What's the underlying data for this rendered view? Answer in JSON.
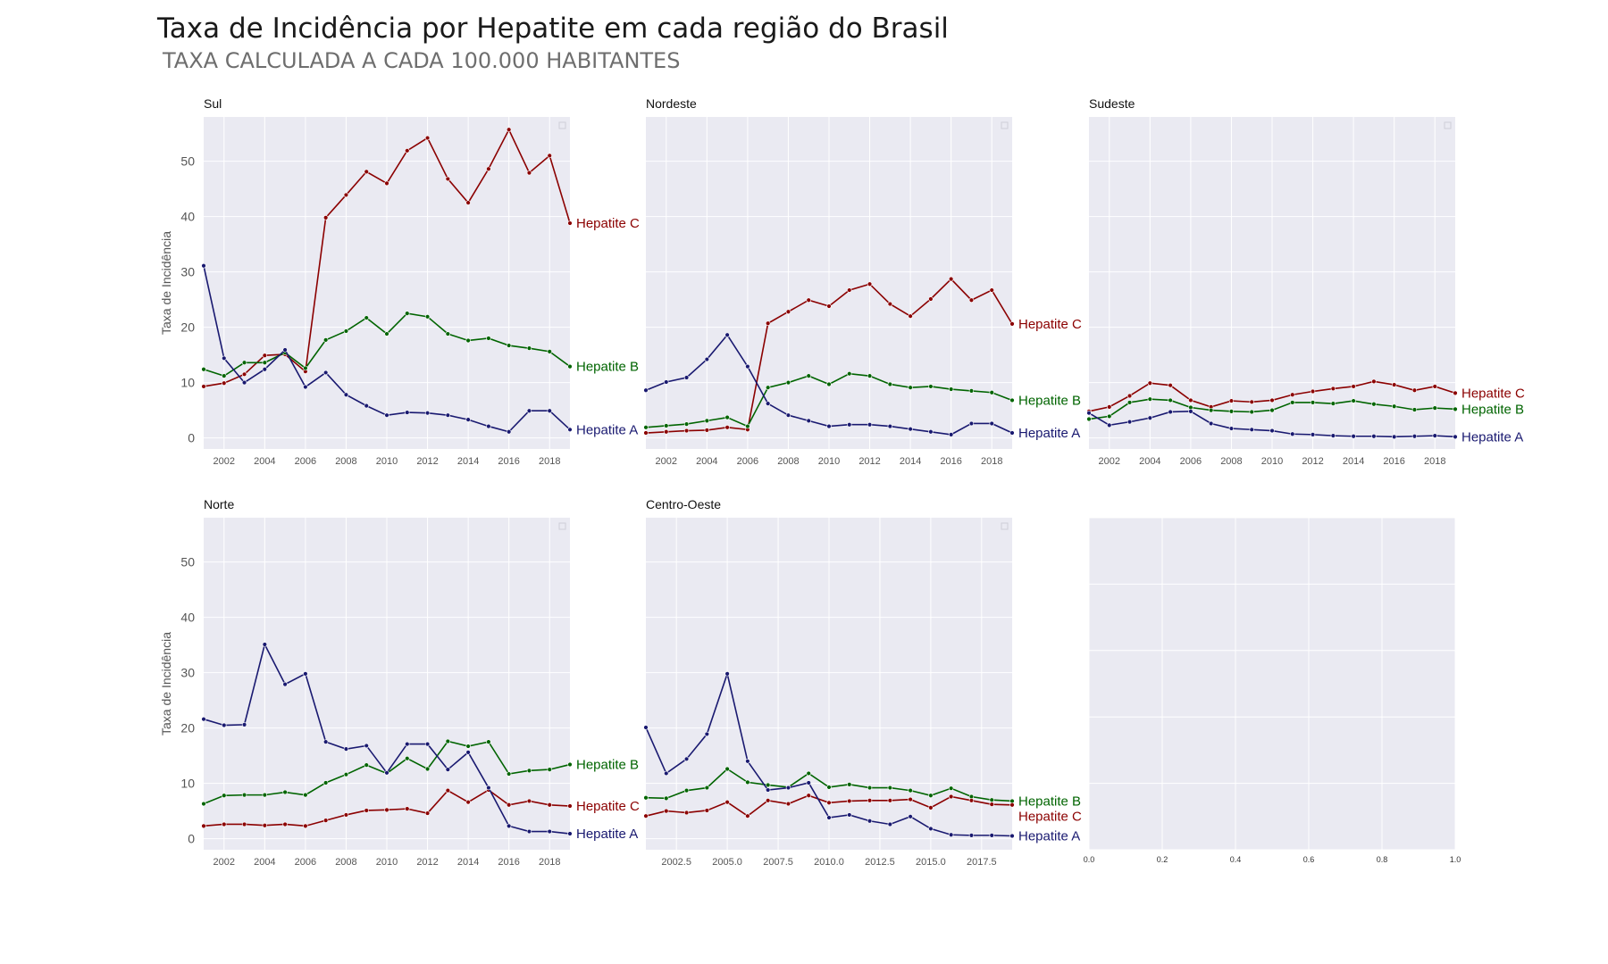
{
  "figure": {
    "title": "Taxa de Incidência por Hepatite em cada região do Brasil",
    "subtitle": "TAXA CALCULADA A CADA 100.000 HABITANTES",
    "colors": {
      "Hepatite A": "#191970",
      "Hepatite B": "#006400",
      "Hepatite C": "#8b0000",
      "background": "#eaeaf2"
    }
  },
  "chart_data": [
    {
      "type": "line",
      "title": "Sul",
      "ylabel": "Taxa de Incidência",
      "xlabel": "",
      "ylim": [
        -2,
        58
      ],
      "yticks": [
        0,
        10,
        20,
        30,
        40,
        50
      ],
      "xticks": [
        "2002",
        "2004",
        "2006",
        "2008",
        "2010",
        "2012",
        "2014",
        "2016",
        "2018"
      ],
      "grid": true,
      "x": [
        2001,
        2002,
        2003,
        2004,
        2005,
        2006,
        2007,
        2008,
        2009,
        2010,
        2011,
        2012,
        2013,
        2014,
        2015,
        2016,
        2017,
        2018,
        2019
      ],
      "series": [
        {
          "name": "Hepatite C",
          "values": [
            9.3,
            9.9,
            11.5,
            14.9,
            15.1,
            12.0,
            39.8,
            43.9,
            48.1,
            46.0,
            51.9,
            54.2,
            46.8,
            42.5,
            48.6,
            55.7,
            47.9,
            51.0,
            38.8
          ]
        },
        {
          "name": "Hepatite B",
          "values": [
            12.4,
            11.2,
            13.6,
            13.6,
            15.4,
            12.6,
            17.7,
            19.3,
            21.7,
            18.8,
            22.5,
            21.9,
            18.8,
            17.6,
            18.0,
            16.7,
            16.2,
            15.6,
            12.9
          ]
        },
        {
          "name": "Hepatite A",
          "values": [
            31.1,
            14.4,
            10.0,
            12.4,
            15.9,
            9.2,
            11.8,
            7.8,
            5.8,
            4.1,
            4.6,
            4.5,
            4.1,
            3.3,
            2.1,
            1.1,
            4.9,
            4.9,
            1.5
          ]
        }
      ]
    },
    {
      "type": "line",
      "title": "Nordeste",
      "ylim": [
        -2,
        58
      ],
      "xticks": [
        "2002",
        "2004",
        "2006",
        "2008",
        "2010",
        "2012",
        "2014",
        "2016",
        "2018"
      ],
      "grid": true,
      "x": [
        2001,
        2002,
        2003,
        2004,
        2005,
        2006,
        2007,
        2008,
        2009,
        2010,
        2011,
        2012,
        2013,
        2014,
        2015,
        2016,
        2017,
        2018,
        2019
      ],
      "series": [
        {
          "name": "Hepatite C",
          "values": [
            0.9,
            1.1,
            1.3,
            1.4,
            1.9,
            1.5,
            20.7,
            22.8,
            24.9,
            23.8,
            26.7,
            27.8,
            24.2,
            22.0,
            25.1,
            28.7,
            24.9,
            26.7,
            20.6
          ]
        },
        {
          "name": "Hepatite B",
          "values": [
            1.9,
            2.2,
            2.5,
            3.1,
            3.7,
            2.1,
            9.1,
            10.0,
            11.2,
            9.7,
            11.6,
            11.2,
            9.7,
            9.1,
            9.3,
            8.8,
            8.5,
            8.2,
            6.8
          ]
        },
        {
          "name": "Hepatite A",
          "values": [
            8.6,
            10.1,
            10.9,
            14.2,
            18.6,
            12.9,
            6.2,
            4.1,
            3.1,
            2.1,
            2.4,
            2.4,
            2.1,
            1.6,
            1.1,
            0.6,
            2.6,
            2.6,
            0.9
          ]
        }
      ]
    },
    {
      "type": "line",
      "title": "Sudeste",
      "ylim": [
        -2,
        58
      ],
      "xticks": [
        "2002",
        "2004",
        "2006",
        "2008",
        "2010",
        "2012",
        "2014",
        "2016",
        "2018"
      ],
      "grid": true,
      "x": [
        2001,
        2002,
        2003,
        2004,
        2005,
        2006,
        2007,
        2008,
        2009,
        2010,
        2011,
        2012,
        2013,
        2014,
        2015,
        2016,
        2017,
        2018,
        2019
      ],
      "series": [
        {
          "name": "Hepatite C",
          "values": [
            4.8,
            5.6,
            7.6,
            9.9,
            9.5,
            6.8,
            5.6,
            6.7,
            6.5,
            6.8,
            7.8,
            8.4,
            8.9,
            9.3,
            10.2,
            9.6,
            8.6,
            9.3,
            8.1
          ]
        },
        {
          "name": "Hepatite B",
          "values": [
            3.4,
            3.9,
            6.4,
            7.0,
            6.8,
            5.5,
            5.0,
            4.8,
            4.7,
            5.0,
            6.4,
            6.4,
            6.2,
            6.7,
            6.1,
            5.7,
            5.1,
            5.4,
            5.2
          ]
        },
        {
          "name": "Hepatite A",
          "values": [
            4.5,
            2.3,
            2.9,
            3.6,
            4.7,
            4.8,
            2.6,
            1.7,
            1.5,
            1.3,
            0.7,
            0.6,
            0.4,
            0.3,
            0.3,
            0.2,
            0.3,
            0.4,
            0.2
          ]
        }
      ]
    },
    {
      "type": "line",
      "title": "Norte",
      "ylabel": "Taxa de Incidência",
      "ylim": [
        -2,
        58
      ],
      "yticks": [
        0,
        10,
        20,
        30,
        40,
        50
      ],
      "xticks": [
        "2002",
        "2004",
        "2006",
        "2008",
        "2010",
        "2012",
        "2014",
        "2016",
        "2018"
      ],
      "grid": true,
      "x": [
        2001,
        2002,
        2003,
        2004,
        2005,
        2006,
        2007,
        2008,
        2009,
        2010,
        2011,
        2012,
        2013,
        2014,
        2015,
        2016,
        2017,
        2018,
        2019
      ],
      "series": [
        {
          "name": "Hepatite B",
          "values": [
            6.3,
            7.8,
            7.9,
            7.9,
            8.4,
            7.9,
            10.1,
            11.6,
            13.3,
            11.8,
            14.5,
            12.6,
            17.6,
            16.7,
            17.5,
            11.7,
            12.3,
            12.5,
            13.4
          ]
        },
        {
          "name": "Hepatite C",
          "values": [
            2.3,
            2.6,
            2.6,
            2.4,
            2.6,
            2.3,
            3.3,
            4.3,
            5.1,
            5.2,
            5.4,
            4.6,
            8.7,
            6.6,
            8.8,
            6.1,
            6.8,
            6.1,
            5.9
          ]
        },
        {
          "name": "Hepatite A",
          "values": [
            21.6,
            20.5,
            20.6,
            35.1,
            27.9,
            29.8,
            17.5,
            16.2,
            16.8,
            11.9,
            17.1,
            17.1,
            12.5,
            15.6,
            9.2,
            2.3,
            1.3,
            1.3,
            0.9
          ]
        }
      ]
    },
    {
      "type": "line",
      "title": "Centro-Oeste",
      "ylim": [
        -2,
        58
      ],
      "xticks": [
        "2002.5",
        "2005.0",
        "2007.5",
        "2010.0",
        "2012.5",
        "2015.0",
        "2017.5"
      ],
      "grid": true,
      "x": [
        2001,
        2002,
        2003,
        2004,
        2005,
        2006,
        2007,
        2008,
        2009,
        2010,
        2011,
        2012,
        2013,
        2014,
        2015,
        2016,
        2017,
        2018,
        2019
      ],
      "series": [
        {
          "name": "Hepatite B",
          "values": [
            7.4,
            7.3,
            8.7,
            9.2,
            12.6,
            10.2,
            9.7,
            9.3,
            11.8,
            9.3,
            9.8,
            9.2,
            9.2,
            8.7,
            7.8,
            9.1,
            7.6,
            7.0,
            6.8
          ]
        },
        {
          "name": "Hepatite C",
          "values": [
            4.1,
            5.0,
            4.7,
            5.1,
            6.6,
            4.1,
            6.9,
            6.3,
            7.8,
            6.5,
            6.8,
            6.9,
            6.9,
            7.1,
            5.6,
            7.6,
            6.9,
            6.2,
            6.1
          ]
        },
        {
          "name": "Hepatite A",
          "values": [
            20.1,
            11.8,
            14.4,
            18.9,
            29.8,
            14.0,
            8.8,
            9.2,
            10.1,
            3.8,
            4.3,
            3.2,
            2.6,
            4.0,
            1.8,
            0.7,
            0.6,
            0.6,
            0.5
          ]
        }
      ]
    },
    {
      "type": "line",
      "title": "",
      "xlim": [
        0.0,
        1.0
      ],
      "ylim": [
        0.0,
        1.0
      ],
      "xticks": [
        "0.0",
        "0.2",
        "0.4",
        "0.6",
        "0.8",
        "1.0"
      ],
      "grid": true,
      "series": []
    }
  ]
}
